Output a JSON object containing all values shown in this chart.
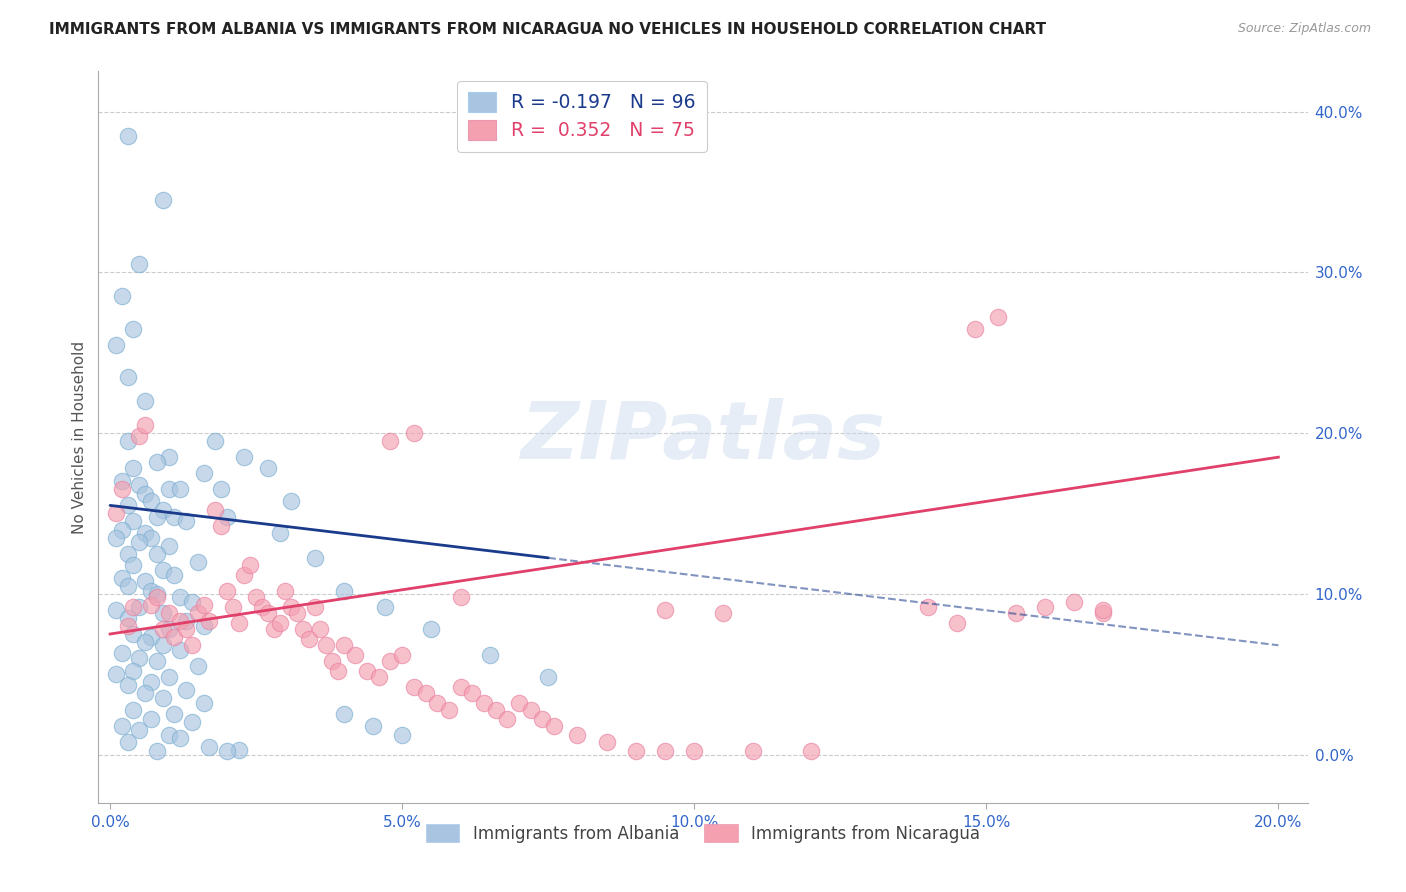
{
  "title": "IMMIGRANTS FROM ALBANIA VS IMMIGRANTS FROM NICARAGUA NO VEHICLES IN HOUSEHOLD CORRELATION CHART",
  "source": "Source: ZipAtlas.com",
  "xlabel_ticks": [
    "0.0%",
    "5.0%",
    "10.0%",
    "15.0%",
    "20.0%"
  ],
  "ylabel_ticks": [
    "0.0%",
    "10.0%",
    "20.0%",
    "30.0%",
    "40.0%"
  ],
  "xlabel_tick_vals": [
    0.0,
    0.05,
    0.1,
    0.15,
    0.2
  ],
  "ylabel_tick_vals": [
    0.0,
    0.1,
    0.2,
    0.3,
    0.4
  ],
  "ylabel_label": "No Vehicles in Household",
  "legend_labels": [
    "Immigrants from Albania",
    "Immigrants from Nicaragua"
  ],
  "albania_color": "#a8c4e0",
  "nicaragua_color": "#f4a0b0",
  "albania_edge_color": "#7aaed0",
  "nicaragua_edge_color": "#e880a0",
  "albania_line_color": "#1a3a8c",
  "nicaragua_line_color": "#e0406a",
  "watermark_text": "ZIPatlas",
  "albania_R": -0.197,
  "albania_N": 96,
  "nicaragua_R": 0.352,
  "nicaragua_N": 75,
  "albania_line": [
    0.0,
    0.2,
    0.155,
    0.068
  ],
  "nicaragua_line": [
    0.0,
    0.2,
    0.075,
    0.185
  ],
  "albania_scatter": [
    [
      0.003,
      0.385
    ],
    [
      0.009,
      0.345
    ],
    [
      0.005,
      0.305
    ],
    [
      0.002,
      0.285
    ],
    [
      0.004,
      0.265
    ],
    [
      0.001,
      0.255
    ],
    [
      0.003,
      0.235
    ],
    [
      0.006,
      0.22
    ],
    [
      0.003,
      0.195
    ],
    [
      0.018,
      0.195
    ],
    [
      0.01,
      0.185
    ],
    [
      0.008,
      0.182
    ],
    [
      0.004,
      0.178
    ],
    [
      0.016,
      0.175
    ],
    [
      0.002,
      0.17
    ],
    [
      0.005,
      0.168
    ],
    [
      0.01,
      0.165
    ],
    [
      0.012,
      0.165
    ],
    [
      0.006,
      0.162
    ],
    [
      0.007,
      0.158
    ],
    [
      0.003,
      0.155
    ],
    [
      0.009,
      0.152
    ],
    [
      0.008,
      0.148
    ],
    [
      0.011,
      0.148
    ],
    [
      0.004,
      0.145
    ],
    [
      0.013,
      0.145
    ],
    [
      0.002,
      0.14
    ],
    [
      0.006,
      0.138
    ],
    [
      0.001,
      0.135
    ],
    [
      0.007,
      0.135
    ],
    [
      0.005,
      0.132
    ],
    [
      0.01,
      0.13
    ],
    [
      0.003,
      0.125
    ],
    [
      0.008,
      0.125
    ],
    [
      0.015,
      0.12
    ],
    [
      0.004,
      0.118
    ],
    [
      0.009,
      0.115
    ],
    [
      0.011,
      0.112
    ],
    [
      0.002,
      0.11
    ],
    [
      0.006,
      0.108
    ],
    [
      0.003,
      0.105
    ],
    [
      0.007,
      0.102
    ],
    [
      0.008,
      0.1
    ],
    [
      0.012,
      0.098
    ],
    [
      0.014,
      0.095
    ],
    [
      0.005,
      0.092
    ],
    [
      0.001,
      0.09
    ],
    [
      0.009,
      0.088
    ],
    [
      0.003,
      0.085
    ],
    [
      0.013,
      0.083
    ],
    [
      0.016,
      0.08
    ],
    [
      0.01,
      0.078
    ],
    [
      0.004,
      0.075
    ],
    [
      0.007,
      0.073
    ],
    [
      0.006,
      0.07
    ],
    [
      0.009,
      0.068
    ],
    [
      0.012,
      0.065
    ],
    [
      0.002,
      0.063
    ],
    [
      0.005,
      0.06
    ],
    [
      0.008,
      0.058
    ],
    [
      0.015,
      0.055
    ],
    [
      0.004,
      0.052
    ],
    [
      0.001,
      0.05
    ],
    [
      0.01,
      0.048
    ],
    [
      0.007,
      0.045
    ],
    [
      0.003,
      0.043
    ],
    [
      0.013,
      0.04
    ],
    [
      0.006,
      0.038
    ],
    [
      0.009,
      0.035
    ],
    [
      0.016,
      0.032
    ],
    [
      0.004,
      0.028
    ],
    [
      0.011,
      0.025
    ],
    [
      0.007,
      0.022
    ],
    [
      0.014,
      0.02
    ],
    [
      0.002,
      0.018
    ],
    [
      0.005,
      0.015
    ],
    [
      0.01,
      0.012
    ],
    [
      0.012,
      0.01
    ],
    [
      0.003,
      0.008
    ],
    [
      0.017,
      0.005
    ],
    [
      0.022,
      0.003
    ],
    [
      0.008,
      0.002
    ],
    [
      0.019,
      0.165
    ],
    [
      0.023,
      0.185
    ],
    [
      0.027,
      0.178
    ],
    [
      0.031,
      0.158
    ],
    [
      0.02,
      0.148
    ],
    [
      0.029,
      0.138
    ],
    [
      0.035,
      0.122
    ],
    [
      0.04,
      0.102
    ],
    [
      0.047,
      0.092
    ],
    [
      0.055,
      0.078
    ],
    [
      0.065,
      0.062
    ],
    [
      0.075,
      0.048
    ],
    [
      0.04,
      0.025
    ],
    [
      0.045,
      0.018
    ],
    [
      0.05,
      0.012
    ],
    [
      0.02,
      0.002
    ]
  ],
  "nicaragua_scatter": [
    [
      0.001,
      0.15
    ],
    [
      0.002,
      0.165
    ],
    [
      0.003,
      0.08
    ],
    [
      0.004,
      0.092
    ],
    [
      0.005,
      0.198
    ],
    [
      0.006,
      0.205
    ],
    [
      0.007,
      0.093
    ],
    [
      0.008,
      0.098
    ],
    [
      0.009,
      0.078
    ],
    [
      0.01,
      0.088
    ],
    [
      0.011,
      0.073
    ],
    [
      0.012,
      0.083
    ],
    [
      0.013,
      0.078
    ],
    [
      0.014,
      0.068
    ],
    [
      0.015,
      0.088
    ],
    [
      0.016,
      0.093
    ],
    [
      0.017,
      0.083
    ],
    [
      0.018,
      0.152
    ],
    [
      0.019,
      0.142
    ],
    [
      0.02,
      0.102
    ],
    [
      0.021,
      0.092
    ],
    [
      0.022,
      0.082
    ],
    [
      0.023,
      0.112
    ],
    [
      0.024,
      0.118
    ],
    [
      0.025,
      0.098
    ],
    [
      0.026,
      0.092
    ],
    [
      0.027,
      0.088
    ],
    [
      0.028,
      0.078
    ],
    [
      0.029,
      0.082
    ],
    [
      0.03,
      0.102
    ],
    [
      0.031,
      0.092
    ],
    [
      0.032,
      0.088
    ],
    [
      0.033,
      0.078
    ],
    [
      0.034,
      0.072
    ],
    [
      0.035,
      0.092
    ],
    [
      0.036,
      0.078
    ],
    [
      0.037,
      0.068
    ],
    [
      0.038,
      0.058
    ],
    [
      0.039,
      0.052
    ],
    [
      0.04,
      0.068
    ],
    [
      0.042,
      0.062
    ],
    [
      0.044,
      0.052
    ],
    [
      0.046,
      0.048
    ],
    [
      0.048,
      0.058
    ],
    [
      0.05,
      0.062
    ],
    [
      0.052,
      0.042
    ],
    [
      0.054,
      0.038
    ],
    [
      0.056,
      0.032
    ],
    [
      0.058,
      0.028
    ],
    [
      0.06,
      0.042
    ],
    [
      0.062,
      0.038
    ],
    [
      0.064,
      0.032
    ],
    [
      0.066,
      0.028
    ],
    [
      0.068,
      0.022
    ],
    [
      0.07,
      0.032
    ],
    [
      0.072,
      0.028
    ],
    [
      0.074,
      0.022
    ],
    [
      0.076,
      0.018
    ],
    [
      0.08,
      0.012
    ],
    [
      0.085,
      0.008
    ],
    [
      0.09,
      0.002
    ],
    [
      0.095,
      0.002
    ],
    [
      0.1,
      0.002
    ],
    [
      0.14,
      0.092
    ],
    [
      0.145,
      0.082
    ],
    [
      0.155,
      0.088
    ],
    [
      0.16,
      0.092
    ],
    [
      0.165,
      0.095
    ],
    [
      0.17,
      0.088
    ],
    [
      0.148,
      0.265
    ],
    [
      0.152,
      0.272
    ],
    [
      0.17,
      0.09
    ],
    [
      0.06,
      0.098
    ],
    [
      0.11,
      0.002
    ],
    [
      0.12,
      0.002
    ],
    [
      0.095,
      0.09
    ],
    [
      0.105,
      0.088
    ],
    [
      0.052,
      0.2
    ],
    [
      0.048,
      0.195
    ]
  ]
}
